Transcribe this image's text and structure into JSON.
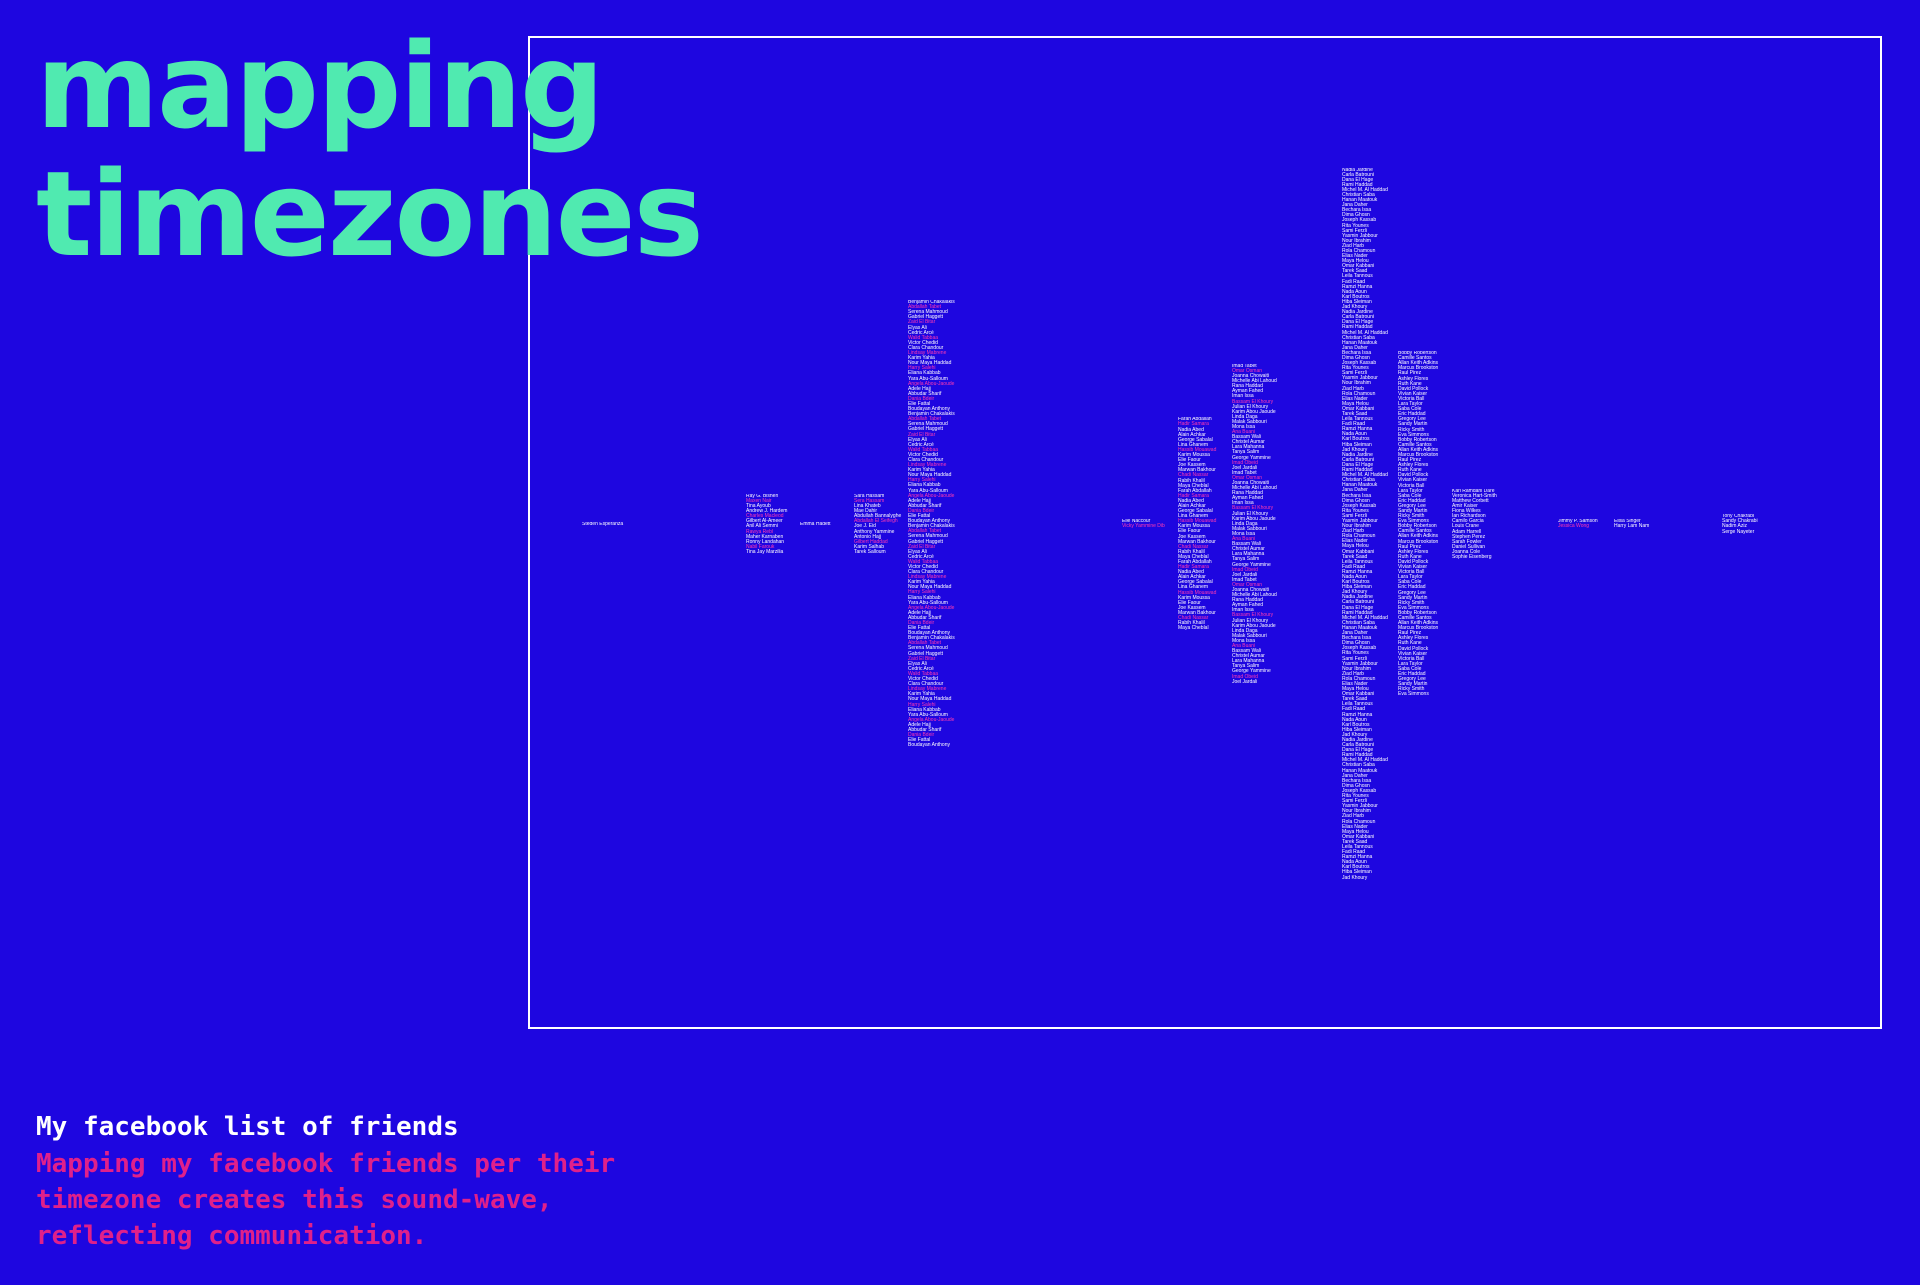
{
  "title": {
    "line1": "mapping",
    "line2": "timezones"
  },
  "caption": {
    "heading": "My facebook list of friends",
    "body": "Mapping my facebook friends per their timezone creates this sound-wave, reflecting communication."
  },
  "colors": {
    "background": "#1e06e0",
    "title": "#50eab0",
    "name": "#ffffff",
    "highlight": "#ff3ab0",
    "caption_body": "#e0208a"
  },
  "timezones": [
    {
      "names": [
        "Steden Esperanza"
      ]
    },
    {
      "names": [
        "Ray G. Bishen",
        "Maxen Nair",
        "Tina Ayoub",
        "Andrew J. Hardem",
        "Charles Macleod",
        "Gilbert Al-Ameer",
        "Anil Ali Semmi",
        "Rawya Rebl",
        "Maher Karnaben",
        "Ronny Landahan",
        "Nabil Farouk",
        "Tina Jay Marzilia"
      ]
    },
    {
      "names": [
        "Emma Hadett"
      ]
    },
    {
      "names": [
        "Sara Hassam",
        "Sera Hassam",
        "Lina Khateb",
        "Mae Dahir",
        "Abdullah Bannalyghe",
        "Abdallah El Seifegh",
        "Joe J. Eid",
        "Anthony Yammine",
        "Antonio Hajj",
        "Gilbert Haddad",
        "Karim Salhab",
        "Tarek Salloum"
      ]
    },
    {
      "names": [
        "Benjamin Chakalakis",
        "Abdallah Tabet",
        "Serena Mahmoud",
        "Gabriel Haggett",
        "Zaid El Bitar",
        "Elyas Ali",
        "Cedric Arcé",
        "Walid Tabbaa",
        "Victor Chedid",
        "Clara Chandour",
        "Lindsay Mabrene",
        "Karim Yahia",
        "Nour Maya Haddad",
        "Harry Salehi",
        "Eliana Kabbab",
        "Yara Abu-Salloum",
        "Angela Abou-Jaoude",
        "Adele Hajj",
        "Abbudar Sharif",
        "Dania Bdeir",
        "Elie Fattal",
        "Boudayan Anthony"
      ]
    },
    {
      "names": [
        "Elie Naccour",
        "Vicky Yammine Dib"
      ]
    },
    {
      "names": [
        "Farah Abdallah",
        "Hadir Samara",
        "Nadia Abed",
        "Alain Achkar",
        "George Sabalal",
        "Lina Ghanem",
        "Hassib Mouawad",
        "Karim Moussa",
        "Elie Faour",
        "Joe Kassem",
        "Marwan Bakhour",
        "Chadi Nassar",
        "Rabih Khalil",
        "Maya Cheblal"
      ]
    },
    {
      "names": [
        "Imad Tabet",
        "Omar Osman",
        "Joanna Chowaiti",
        "Michelle Abi Lahoud",
        "Rana Haddad",
        "Ayman Fahed",
        "Iman Issa",
        "Bassam El Khoury",
        "Julian El Khoury",
        "Karim Abou Jaoude",
        "Linda Daga",
        "Malak Sabbouri",
        "Mona Issa",
        "Ana Buani",
        "Bassam Wali",
        "Christel Aumar",
        "Lara Mahanna",
        "Tanya Salim",
        "George Yammine",
        "Imad Obeid",
        "Joel Jardali"
      ]
    },
    {
      "names": [
        "Nadia Jardine",
        "Carla Batrouni",
        "Dana El Hage",
        "Rami Haddad",
        "Michel M. Al Haddad",
        "Christian Saba",
        "Hanan Maatouk",
        "Jana Daher",
        "Bechara Issa",
        "Dima Ghosn",
        "Joseph Kassab",
        "Rita Younes",
        "Sami Ferzli",
        "Yasmin Jabbour",
        "Nour Ibrahim",
        "Ziad Harb",
        "Rola Chamoun",
        "Elias Nader",
        "Maya Helou",
        "Omar Kabbani",
        "Tarek Saad",
        "Leila Tannous",
        "Fadi Raad",
        "Ramzi Hanna",
        "Nada Aoun",
        "Karl Boutros",
        "Hiba Sleiman",
        "Jad Khoury"
      ]
    },
    {
      "names": [
        "Bobby Robertson",
        "Camille Santos",
        "Allan Keith Adkins",
        "Marcus Brookston",
        "Raul Pirez",
        "Ashley Flores",
        "Ruth Kane",
        "David Pollock",
        "Vivian Kaiser",
        "Victoria Ball",
        "Lara Taylor",
        "Saba Cole",
        "Eric Haddad",
        "Gregory Lee",
        "Sandy Martin",
        "Ricky Smith",
        "Eva Simmons"
      ]
    },
    {
      "names": [
        "Karl Ramdahl Dare",
        "Veronica Hart-Smith",
        "Matthew Corbett",
        "Amir Kaiser",
        "Fiona Wilkes",
        "Ian Richardson",
        "Camilo Garcia",
        "Louis Crane",
        "Adam Harrell",
        "Stephen Perez",
        "Sarah Fowler",
        "Daniel Sullivan",
        "Joanna Cole",
        "Sophie Eisenberg"
      ]
    },
    {
      "names": [
        "Jimmy P. Samson",
        "Jessica Wong"
      ]
    },
    {
      "names": [
        "Elisa Singer",
        "Harry Lam Nam"
      ]
    },
    {
      "names": [
        "Tony Chakrabi",
        "Sandy Chakrabi",
        "Nadim Aziz",
        "Serge Nayeter"
      ]
    }
  ]
}
